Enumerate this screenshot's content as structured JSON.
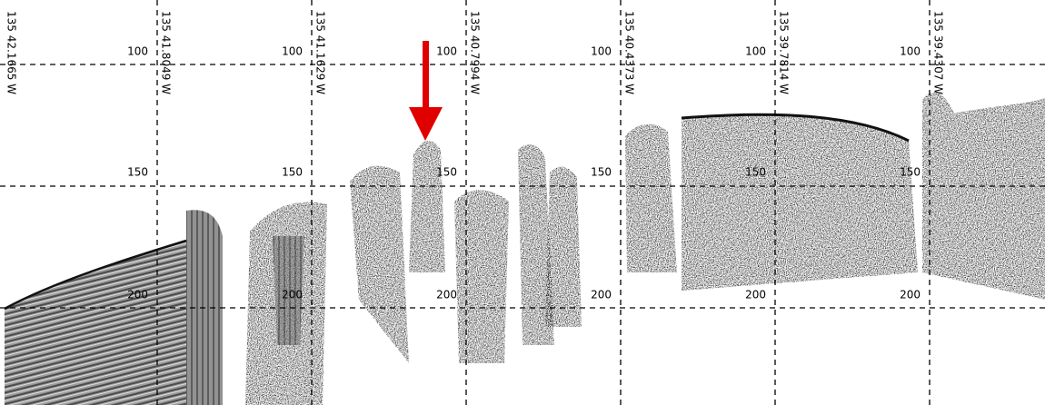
{
  "profile": {
    "longitudes": [
      "135 42.1665 W",
      "135 41.8049 W",
      "135 41.1629 W",
      "135 40.7994 W",
      "135 40.4373 W",
      "135 39.7814 W",
      "135 39.4307 W"
    ],
    "depth_labels": [
      100,
      150,
      200
    ]
  }
}
